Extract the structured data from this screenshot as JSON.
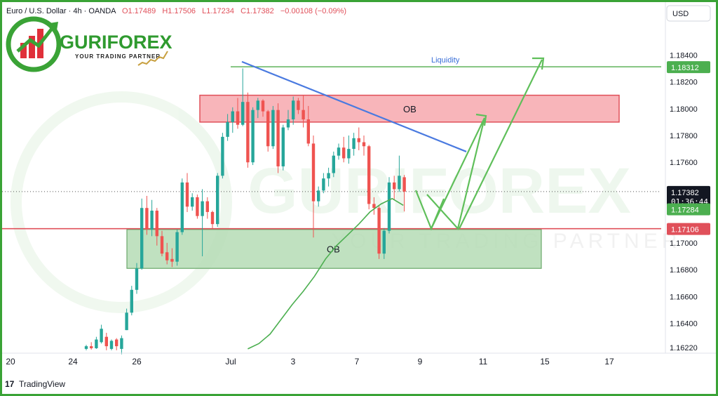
{
  "header": {
    "symbol": "Euro / U.S. Dollar · 4h · OANDA",
    "open": "O1.17489",
    "high": "H1.17506",
    "low": "L1.17234",
    "close": "C1.17382",
    "change": "−0.00108 (−0.09%)"
  },
  "currency_label": "USD",
  "brand": {
    "name": "GURIFOREX",
    "tagline": "YOUR TRADING PARTNER",
    "watermark_name": "GURIFOREX",
    "watermark_tagline": "YOUR TRADING PARTNER"
  },
  "footer": {
    "logo_mark": "17",
    "logo_text": "TradingView"
  },
  "colors": {
    "up": "#26a69a",
    "down": "#ef5350",
    "ob_red_fill": "#f7a8ae",
    "ob_green_fill": "#b5dcb5",
    "trendline": "#4a7ae0",
    "support": "#e0505a",
    "liquidity_line": "#5fb25a",
    "arrows": "#5fbf5a",
    "moving_average": "#4caf50",
    "frame": "#3aa336"
  },
  "price_badges": [
    {
      "value": "1.18312",
      "color": "#4caf50"
    },
    {
      "value": "1.17382",
      "sub": "01:36:44",
      "color": "#131722"
    },
    {
      "value": "1.17284",
      "color": "#4caf50"
    },
    {
      "value": "1.17106",
      "color": "#e0505a"
    }
  ],
  "chart_data": {
    "type": "candlestick",
    "title": "Euro / U.S. Dollar · 4h · OANDA",
    "y_ticks": [
      "1.18400",
      "1.18200",
      "1.18000",
      "1.17800",
      "1.17600",
      "1.17000",
      "1.16800",
      "1.16600",
      "1.16400",
      "1.16220"
    ],
    "x_ticks": [
      "20",
      "24",
      "26",
      "Jul",
      "3",
      "7",
      "9",
      "11",
      "15",
      "17"
    ],
    "ylim": [
      1.1622,
      1.1848
    ],
    "grid": false,
    "annotations": {
      "liquidity": {
        "label": "Liquidity",
        "price": 1.18312
      },
      "ob_upper": {
        "label": "OB",
        "top": 1.181,
        "bottom": 1.179
      },
      "ob_lower": {
        "label": "OB",
        "top": 1.171,
        "bottom": 1.1681
      },
      "support": 1.17106,
      "current_price": 1.17382
    },
    "candles": [
      [
        1.1621,
        1.1624,
        1.162,
        1.1623
      ],
      [
        1.1623,
        1.1626,
        1.16205,
        1.16215
      ],
      [
        1.16215,
        1.163,
        1.1621,
        1.1628
      ],
      [
        1.1626,
        1.1639,
        1.1625,
        1.1636
      ],
      [
        1.163,
        1.1633,
        1.162,
        1.1623
      ],
      [
        1.1621,
        1.1628,
        1.162,
        1.1627
      ],
      [
        1.1628,
        1.1629,
        1.162,
        1.1623
      ],
      [
        1.1621,
        1.1631,
        1.1617,
        1.1629
      ],
      [
        1.1635,
        1.1651,
        1.1635,
        1.1648
      ],
      [
        1.1648,
        1.1668,
        1.1646,
        1.1665
      ],
      [
        1.1665,
        1.1685,
        1.1662,
        1.1681
      ],
      [
        1.1681,
        1.1733,
        1.168,
        1.1726
      ],
      [
        1.1726,
        1.1735,
        1.1706,
        1.171
      ],
      [
        1.171,
        1.1732,
        1.1705,
        1.1724
      ],
      [
        1.1724,
        1.1726,
        1.1698,
        1.1705
      ],
      [
        1.1705,
        1.1709,
        1.169,
        1.1692
      ],
      [
        1.1693,
        1.17,
        1.1684,
        1.1687
      ],
      [
        1.1688,
        1.1696,
        1.1682,
        1.1686
      ],
      [
        1.1686,
        1.171,
        1.1683,
        1.1708
      ],
      [
        1.1708,
        1.1748,
        1.1706,
        1.1745
      ],
      [
        1.1745,
        1.1752,
        1.1723,
        1.1727
      ],
      [
        1.1727,
        1.1737,
        1.1724,
        1.1734
      ],
      [
        1.1734,
        1.1736,
        1.1718,
        1.172
      ],
      [
        1.172,
        1.174,
        1.169,
        1.1731
      ],
      [
        1.1731,
        1.1734,
        1.1718,
        1.1723
      ],
      [
        1.1723,
        1.1724,
        1.1711,
        1.1714
      ],
      [
        1.1714,
        1.1752,
        1.1712,
        1.175
      ],
      [
        1.175,
        1.1782,
        1.1748,
        1.1779
      ],
      [
        1.1779,
        1.1796,
        1.1776,
        1.179
      ],
      [
        1.179,
        1.1801,
        1.1782,
        1.1798
      ],
      [
        1.1798,
        1.1808,
        1.1785,
        1.1788
      ],
      [
        1.1788,
        1.183,
        1.1787,
        1.1805
      ],
      [
        1.1805,
        1.1812,
        1.1756,
        1.176
      ],
      [
        1.176,
        1.1801,
        1.1758,
        1.1799
      ],
      [
        1.1799,
        1.1808,
        1.1793,
        1.1806
      ],
      [
        1.1806,
        1.1807,
        1.1794,
        1.1798
      ],
      [
        1.1798,
        1.1799,
        1.1768,
        1.1772
      ],
      [
        1.1772,
        1.1802,
        1.177,
        1.1799
      ],
      [
        1.1799,
        1.1804,
        1.1752,
        1.1757
      ],
      [
        1.1757,
        1.1788,
        1.1754,
        1.1786
      ],
      [
        1.1786,
        1.1799,
        1.1784,
        1.1792
      ],
      [
        1.1792,
        1.1809,
        1.1788,
        1.1806
      ],
      [
        1.1806,
        1.1808,
        1.1796,
        1.1799
      ],
      [
        1.1799,
        1.181,
        1.1786,
        1.1792
      ],
      [
        1.1792,
        1.1802,
        1.1772,
        1.1774
      ],
      [
        1.1774,
        1.178,
        1.1704,
        1.1731
      ],
      [
        1.1731,
        1.1742,
        1.1727,
        1.1739
      ],
      [
        1.1739,
        1.1752,
        1.1737,
        1.1748
      ],
      [
        1.1748,
        1.1756,
        1.1742,
        1.1752
      ],
      [
        1.1752,
        1.1768,
        1.1749,
        1.1765
      ],
      [
        1.1765,
        1.1774,
        1.1762,
        1.1771
      ],
      [
        1.1771,
        1.1779,
        1.176,
        1.1763
      ],
      [
        1.1763,
        1.178,
        1.1759,
        1.177
      ],
      [
        1.177,
        1.1782,
        1.1765,
        1.1778
      ],
      [
        1.1778,
        1.1786,
        1.1769,
        1.1775
      ],
      [
        1.1775,
        1.178,
        1.1765,
        1.1772
      ],
      [
        1.1772,
        1.1773,
        1.1725,
        1.1729
      ],
      [
        1.1729,
        1.1734,
        1.1721,
        1.1726
      ],
      [
        1.1726,
        1.1728,
        1.1688,
        1.1692
      ],
      [
        1.1692,
        1.1711,
        1.1688,
        1.1709
      ],
      [
        1.1709,
        1.1749,
        1.1707,
        1.1745
      ],
      [
        1.1745,
        1.175,
        1.1732,
        1.174
      ],
      [
        1.174,
        1.1765,
        1.1738,
        1.175
      ],
      [
        1.17489,
        1.17506,
        1.17234,
        1.17382
      ]
    ],
    "moving_average": [
      [
        1.1622,
        1.1621
      ],
      [
        1.1626,
        1.1625
      ],
      [
        1.164,
        1.1632
      ],
      [
        1.166,
        1.1643
      ],
      [
        1.1678,
        1.1654
      ],
      [
        1.1692,
        1.1664
      ],
      [
        1.17,
        1.1675
      ],
      [
        1.1706,
        1.1688
      ],
      [
        1.1711,
        1.1698
      ],
      [
        1.1716,
        1.1706
      ],
      [
        1.172,
        1.1714
      ],
      [
        1.1725,
        1.1723
      ],
      [
        1.1729,
        1.1729
      ],
      [
        1.173,
        1.1733
      ],
      [
        1.173,
        1.1728
      ]
    ]
  }
}
